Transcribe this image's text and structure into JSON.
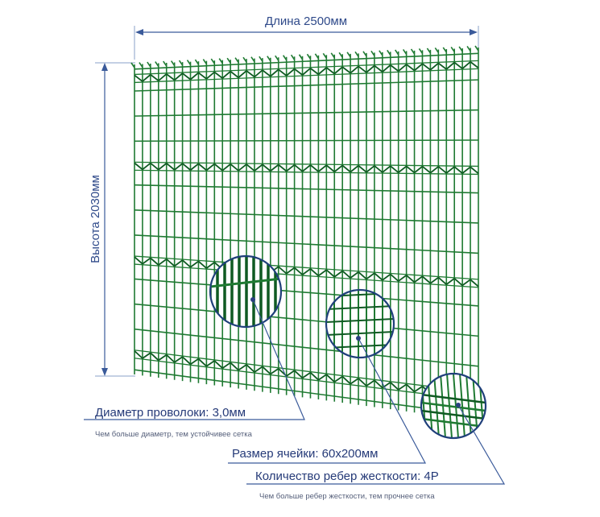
{
  "dimensions": {
    "length_label": "Длина 2500мм",
    "height_label": "Высота 2030мм"
  },
  "callouts": {
    "wire_diameter": {
      "label": "Диаметр проволоки: 3,0мм",
      "note": "Чем больше диаметр, тем устойчивее сетка"
    },
    "mesh_size": {
      "label": "Размер ячейки: 60х200мм"
    },
    "stiffening_ribs": {
      "label": "Количество ребер жесткости: 4Р",
      "note": "Чем больше ребер жесткости, тем прочнее сетка"
    }
  },
  "colors": {
    "mesh_green": "#1f7a32",
    "mesh_dark": "#0f5a22",
    "annotation_blue": "#253a78",
    "leader_line": "#3a5a9a"
  }
}
